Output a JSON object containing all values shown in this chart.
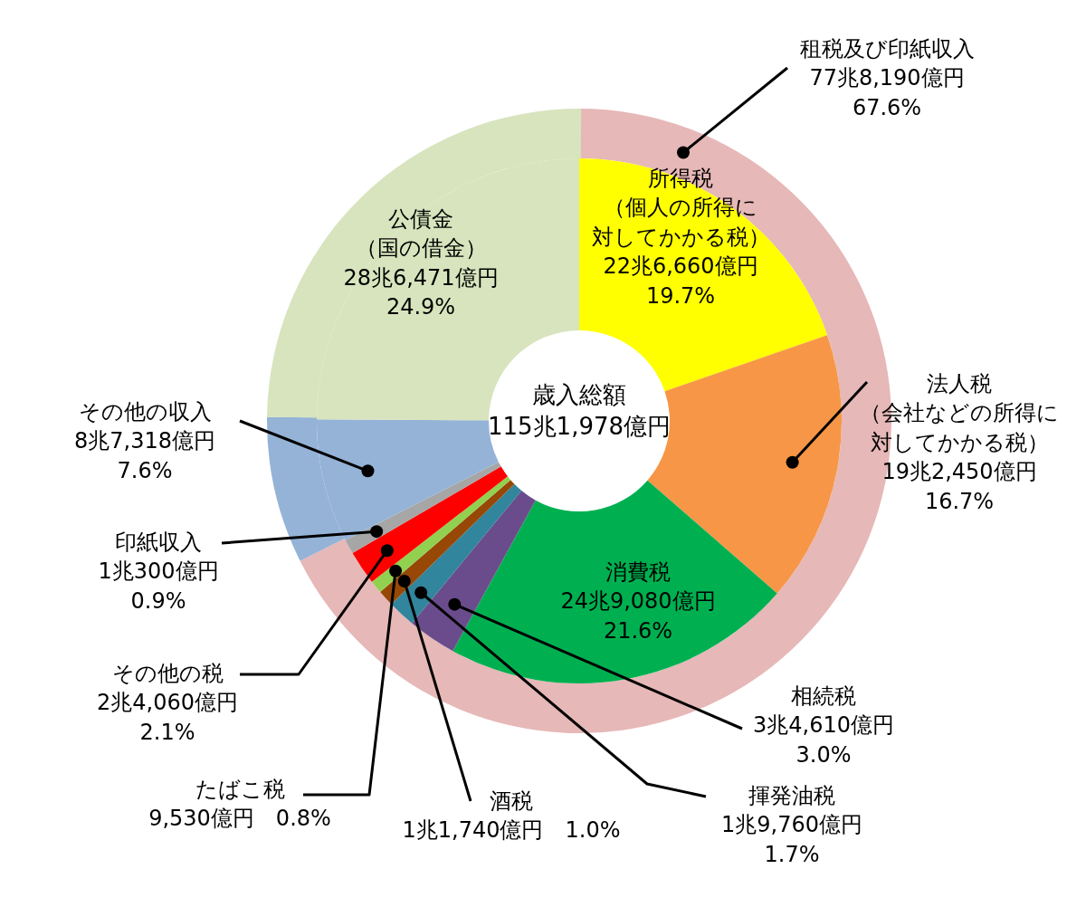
{
  "chart_data": [
    {
      "type": "donut",
      "title": "歳入総額\n115兆1,978億円",
      "categories": [
        "所得税（個人の所得に対してかかる税）",
        "法人税（会社などの所得に対してかかる税）",
        "消費税",
        "相続税",
        "揮発油税",
        "酒税",
        "たばこ税",
        "その他の税",
        "印紙収入",
        "その他の収入",
        "公債金（国の借金）"
      ],
      "values": [
        19.7,
        16.7,
        21.6,
        3.0,
        1.7,
        1.0,
        0.8,
        2.1,
        0.9,
        7.6,
        24.9
      ],
      "colors": [
        "#ffff00",
        "#f79646",
        "#00b050",
        "#6a4c8c",
        "#31859c",
        "#974806",
        "#92d050",
        "#ff0000",
        "#a6a6a6",
        "#95b3d7",
        "#d7e4bd"
      ],
      "value_labels": [
        "22兆6,660億円\n19.7%",
        "19兆2,450億円\n16.7%",
        "24兆9,080億円\n21.6%",
        "3兆4,610億円\n3.0%",
        "1兆9,760億円\n1.7%",
        "1兆1,740億円　1.0%",
        "9,530億円　0.8%",
        "2兆4,060億円\n2.1%",
        "1兆300億円\n0.9%",
        "8兆7,318億円\n7.6%",
        "28兆6,471億円\n24.9%"
      ],
      "legend": false
    },
    {
      "type": "donut",
      "categories": [
        "租税及び印紙収入",
        null,
        null
      ],
      "values": [
        67.6,
        7.6,
        24.9
      ],
      "colors": [
        "#e6b8b7",
        "#95b3d7",
        "#d7e4bd"
      ],
      "value_labels": [
        "77兆8,190億円\n67.6%",
        null,
        null
      ],
      "legend": false
    }
  ]
}
